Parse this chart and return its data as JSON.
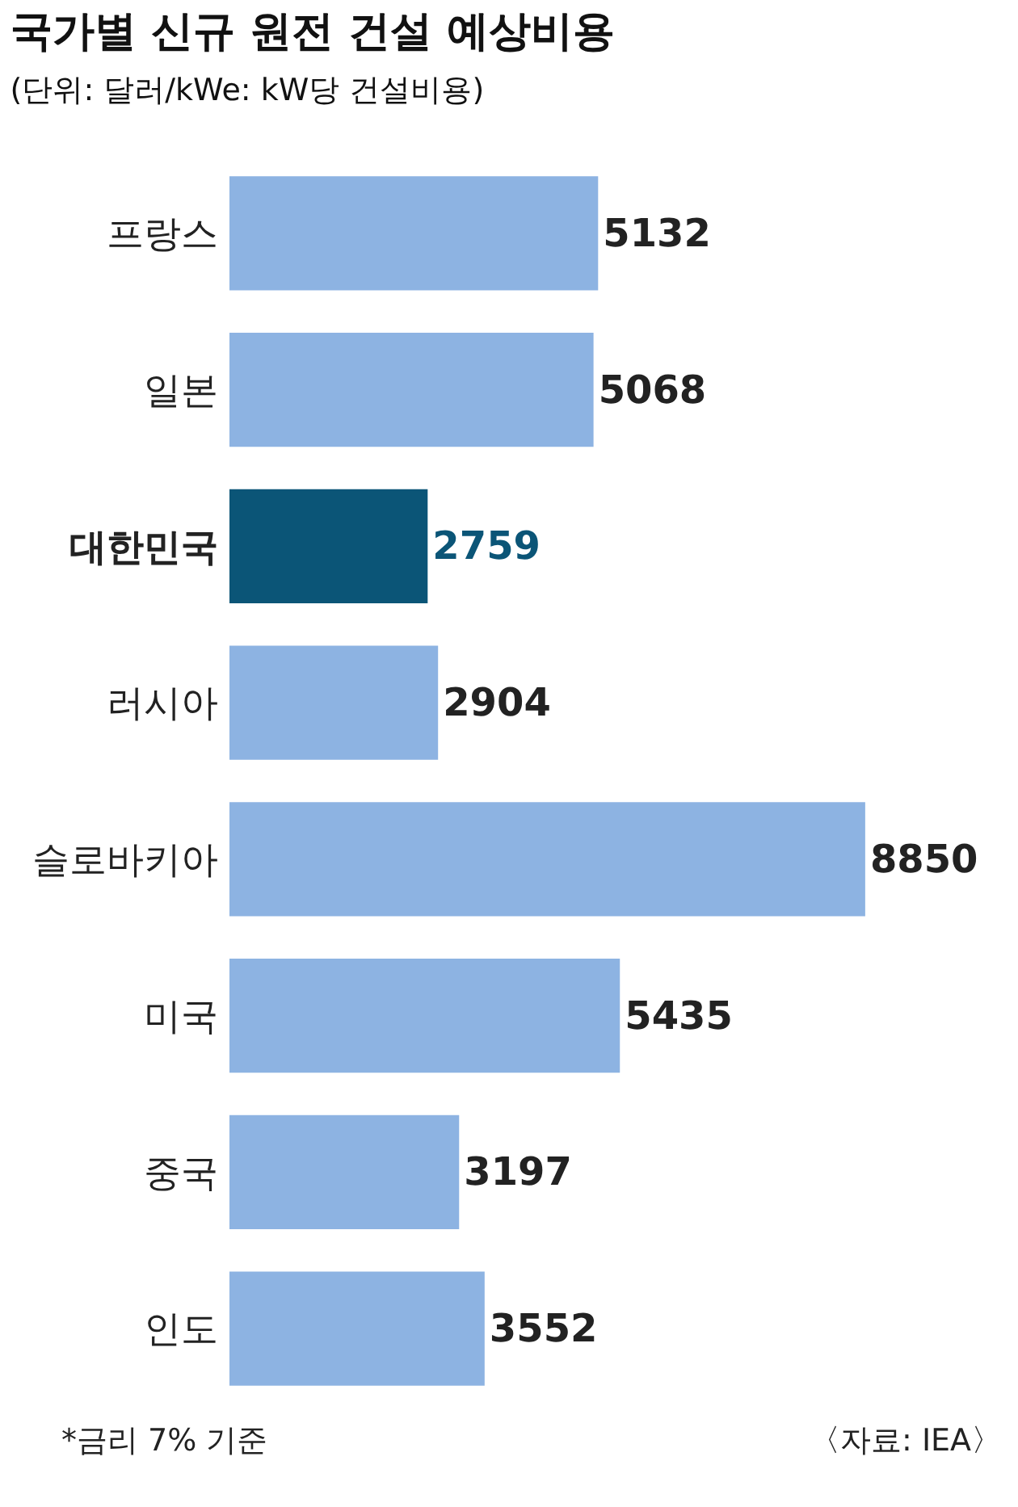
{
  "chart_data": {
    "type": "bar",
    "orientation": "horizontal",
    "title": "국가별 신규 원전 건설 예상비용",
    "subtitle": "(단위: 달러/kWe: kW당 건설비용)",
    "categories": [
      "프랑스",
      "일본",
      "대한민국",
      "러시아",
      "슬로바키아",
      "미국",
      "중국",
      "인도"
    ],
    "values": [
      5132,
      5068,
      2759,
      2904,
      8850,
      5435,
      3197,
      3552
    ],
    "colors": [
      "#8db3e2",
      "#8db3e2",
      "#0b5577",
      "#8db3e2",
      "#8db3e2",
      "#8db3e2",
      "#8db3e2",
      "#8db3e2"
    ],
    "data_labels": true,
    "legend": false,
    "annotations": [
      "*금리 7% 기준",
      "〈자료: IEA〉"
    ]
  }
}
